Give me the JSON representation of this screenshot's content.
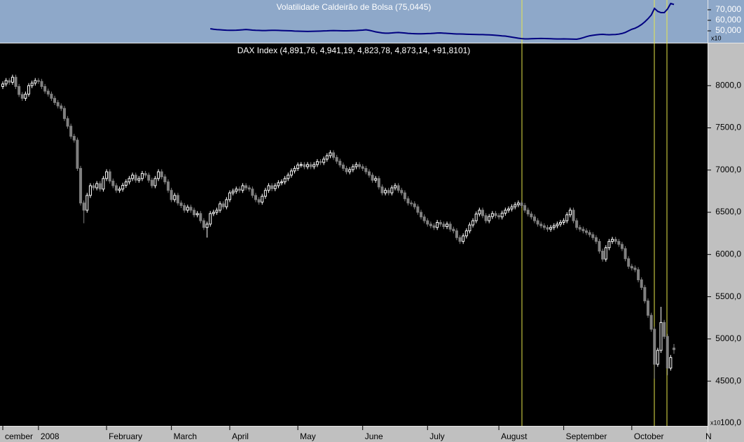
{
  "chart_data": {
    "type": "candlestick",
    "title": "DAX Index (4,891,76, 4,941,19, 4,823,78, 4,873,14, +91,8101)",
    "categories": [
      "cember",
      null,
      null,
      null,
      null,
      null,
      null,
      null,
      null,
      null,
      null,
      "2008",
      null,
      null,
      null,
      null,
      null,
      null,
      null,
      null,
      null,
      null,
      null,
      null,
      null,
      null,
      null,
      null,
      null,
      null,
      null,
      null,
      "February",
      null,
      null,
      null,
      null,
      null,
      null,
      null,
      null,
      null,
      null,
      null,
      null,
      null,
      null,
      null,
      null,
      null,
      null,
      null,
      "March",
      null,
      null,
      null,
      null,
      null,
      null,
      null,
      null,
      null,
      null,
      null,
      null,
      null,
      null,
      null,
      null,
      null,
      "April",
      null,
      null,
      null,
      null,
      null,
      null,
      null,
      null,
      null,
      null,
      null,
      null,
      null,
      null,
      null,
      null,
      null,
      null,
      null,
      null,
      "May",
      null,
      null,
      null,
      null,
      null,
      null,
      null,
      null,
      null,
      null,
      null,
      null,
      null,
      null,
      null,
      null,
      null,
      null,
      null,
      "June",
      null,
      null,
      null,
      null,
      null,
      null,
      null,
      null,
      null,
      null,
      null,
      null,
      null,
      null,
      null,
      null,
      null,
      null,
      null,
      "July",
      null,
      null,
      null,
      null,
      null,
      null,
      null,
      null,
      null,
      null,
      null,
      null,
      null,
      null,
      null,
      null,
      null,
      null,
      null,
      null,
      null,
      "August",
      null,
      null,
      null,
      null,
      null,
      null,
      null,
      null,
      null,
      null,
      null,
      null,
      null,
      null,
      null,
      null,
      null,
      null,
      null,
      "September",
      null,
      null,
      null,
      null,
      null,
      null,
      null,
      null,
      null,
      null,
      null,
      null,
      null,
      null,
      null,
      null,
      null,
      null,
      null,
      null,
      "October",
      null,
      null,
      null,
      null,
      null,
      null,
      null,
      null,
      null,
      null,
      null,
      null,
      null
    ],
    "open": [
      7990,
      8020,
      8060,
      8040,
      8100,
      7990,
      7895,
      7850,
      7900,
      8000,
      8030,
      8060,
      8050,
      7990,
      7935,
      7900,
      7850,
      7800,
      7760,
      7730,
      7610,
      7520,
      7400,
      7355,
      7020,
      6610,
      6525,
      6700,
      6815,
      6790,
      6840,
      6775,
      6900,
      6980,
      6870,
      6815,
      6760,
      6775,
      6820,
      6860,
      6900,
      6940,
      6880,
      6900,
      6960,
      6940,
      6880,
      6815,
      6900,
      6980,
      6920,
      6860,
      6760,
      6650,
      6700,
      6610,
      6580,
      6525,
      6560,
      6525,
      6470,
      6485,
      6400,
      6320,
      6360,
      6485,
      6500,
      6525,
      6600,
      6565,
      6650,
      6730,
      6750,
      6775,
      6760,
      6815,
      6790,
      6775,
      6700,
      6650,
      6620,
      6690,
      6760,
      6815,
      6780,
      6815,
      6850,
      6860,
      6900,
      6940,
      6990,
      7020,
      7060,
      7065,
      7040,
      7065,
      7040,
      7065,
      7100,
      7090,
      7130,
      7170,
      7205,
      7150,
      7105,
      7060,
      7020,
      6980,
      7005,
      7040,
      7065,
      7040,
      7020,
      6980,
      6940,
      6880,
      6900,
      6800,
      6730,
      6760,
      6730,
      6790,
      6815,
      6760,
      6730,
      6660,
      6610,
      6600,
      6565,
      6500,
      6445,
      6400,
      6360,
      6340,
      6320,
      6380,
      6360,
      6330,
      6360,
      6300,
      6280,
      6200,
      6155,
      6220,
      6280,
      6350,
      6400,
      6480,
      6525,
      6460,
      6400,
      6450,
      6485,
      6460,
      6445,
      6490,
      6525,
      6540,
      6565,
      6590,
      6610,
      6580,
      6525,
      6480,
      6445,
      6400,
      6360,
      6340,
      6320,
      6300,
      6320,
      6340,
      6360,
      6380,
      6400,
      6470,
      6525,
      6400,
      6320,
      6300,
      6280,
      6260,
      6235,
      6200,
      6155,
      6040,
      5945,
      6080,
      6155,
      6180,
      6155,
      6120,
      6070,
      5950,
      5860,
      5840,
      5820,
      5700,
      5610,
      5450,
      5280,
      5115,
      4700,
      4865,
      5195,
      5030,
      4655,
      4892
    ],
    "high": [
      8050,
      8090,
      8090,
      8130,
      8130,
      8020,
      7925,
      7930,
      8030,
      8060,
      8090,
      8090,
      8080,
      8020,
      7965,
      7930,
      7880,
      7830,
      7790,
      7760,
      7640,
      7550,
      7430,
      7385,
      7050,
      6640,
      6730,
      6845,
      6845,
      6870,
      6870,
      6930,
      7010,
      7010,
      6900,
      6845,
      6805,
      6850,
      6890,
      6930,
      6970,
      6970,
      6930,
      6990,
      6990,
      6970,
      6910,
      6930,
      7010,
      7010,
      6950,
      6890,
      6790,
      6730,
      6730,
      6640,
      6610,
      6590,
      6590,
      6555,
      6515,
      6515,
      6430,
      6390,
      6515,
      6530,
      6555,
      6630,
      6630,
      6680,
      6760,
      6780,
      6805,
      6805,
      6845,
      6845,
      6820,
      6805,
      6730,
      6680,
      6720,
      6790,
      6845,
      6845,
      6845,
      6880,
      6890,
      6930,
      6970,
      7020,
      7050,
      7090,
      7095,
      7095,
      7095,
      7095,
      7095,
      7130,
      7130,
      7160,
      7200,
      7235,
      7235,
      7180,
      7135,
      7090,
      7050,
      7035,
      7070,
      7095,
      7095,
      7070,
      7050,
      7010,
      6970,
      6930,
      6930,
      6830,
      6790,
      6790,
      6820,
      6845,
      6845,
      6790,
      6760,
      6690,
      6640,
      6630,
      6595,
      6530,
      6475,
      6430,
      6390,
      6370,
      6410,
      6410,
      6390,
      6390,
      6390,
      6330,
      6310,
      6230,
      6250,
      6310,
      6380,
      6430,
      6510,
      6555,
      6555,
      6490,
      6480,
      6515,
      6515,
      6490,
      6520,
      6555,
      6570,
      6595,
      6620,
      6640,
      6640,
      6610,
      6555,
      6510,
      6475,
      6430,
      6390,
      6370,
      6350,
      6350,
      6370,
      6390,
      6410,
      6430,
      6500,
      6555,
      6555,
      6430,
      6350,
      6330,
      6310,
      6290,
      6265,
      6230,
      6185,
      6070,
      6110,
      6185,
      6210,
      6210,
      6185,
      6150,
      6100,
      5980,
      5890,
      5870,
      5850,
      5730,
      5640,
      5480,
      5310,
      5145,
      4895,
      5380,
      5225,
      5060,
      4810,
      4941
    ],
    "low": [
      7960,
      7990,
      8010,
      8010,
      7960,
      7865,
      7820,
      7820,
      7870,
      7970,
      8000,
      8020,
      7960,
      7905,
      7870,
      7820,
      7770,
      7730,
      7700,
      7580,
      7490,
      7370,
      7325,
      6990,
      6580,
      6370,
      6495,
      6670,
      6760,
      6760,
      6745,
      6745,
      6870,
      6840,
      6785,
      6730,
      6730,
      6745,
      6790,
      6830,
      6870,
      6850,
      6850,
      6870,
      6910,
      6850,
      6785,
      6785,
      6870,
      6890,
      6830,
      6730,
      6620,
      6620,
      6580,
      6550,
      6495,
      6495,
      6495,
      6440,
      6440,
      6370,
      6290,
      6200,
      6330,
      6455,
      6470,
      6495,
      6535,
      6535,
      6620,
      6700,
      6720,
      6730,
      6730,
      6760,
      6745,
      6670,
      6620,
      6590,
      6590,
      6660,
      6730,
      6750,
      6750,
      6785,
      6820,
      6830,
      6870,
      6910,
      6960,
      6990,
      7030,
      7010,
      7010,
      7010,
      7010,
      7035,
      7060,
      7060,
      7100,
      7140,
      7120,
      7075,
      7030,
      6990,
      6950,
      6950,
      6975,
      7010,
      7010,
      6990,
      6950,
      6910,
      6850,
      6850,
      6770,
      6700,
      6700,
      6700,
      6700,
      6760,
      6730,
      6700,
      6630,
      6580,
      6570,
      6535,
      6470,
      6415,
      6370,
      6330,
      6310,
      6290,
      6290,
      6330,
      6300,
      6300,
      6270,
      6250,
      6170,
      6125,
      6125,
      6190,
      6250,
      6320,
      6370,
      6450,
      6430,
      6370,
      6370,
      6420,
      6430,
      6415,
      6415,
      6460,
      6495,
      6510,
      6535,
      6560,
      6550,
      6495,
      6450,
      6415,
      6370,
      6330,
      6310,
      6290,
      6270,
      6270,
      6290,
      6310,
      6330,
      6350,
      6370,
      6440,
      6370,
      6290,
      6270,
      6250,
      6230,
      6205,
      6170,
      6125,
      6010,
      5915,
      5915,
      6050,
      6125,
      6125,
      6090,
      6040,
      5920,
      5830,
      5810,
      5790,
      5670,
      5580,
      5420,
      5250,
      5085,
      4530,
      4670,
      4835,
      5000,
      4570,
      4625,
      4824
    ],
    "close": [
      8020,
      8060,
      8040,
      8100,
      7990,
      7895,
      7850,
      7900,
      8000,
      8030,
      8060,
      8050,
      7990,
      7935,
      7900,
      7850,
      7800,
      7760,
      7730,
      7610,
      7520,
      7400,
      7355,
      7020,
      6610,
      6525,
      6700,
      6815,
      6790,
      6840,
      6775,
      6900,
      6980,
      6870,
      6815,
      6760,
      6775,
      6820,
      6860,
      6900,
      6940,
      6880,
      6900,
      6960,
      6940,
      6880,
      6815,
      6900,
      6980,
      6920,
      6860,
      6760,
      6650,
      6700,
      6610,
      6580,
      6525,
      6560,
      6525,
      6470,
      6485,
      6400,
      6320,
      6360,
      6485,
      6500,
      6525,
      6600,
      6565,
      6650,
      6730,
      6750,
      6775,
      6760,
      6815,
      6790,
      6775,
      6700,
      6650,
      6620,
      6690,
      6760,
      6815,
      6780,
      6815,
      6850,
      6860,
      6900,
      6940,
      6990,
      7020,
      7060,
      7065,
      7040,
      7065,
      7040,
      7065,
      7100,
      7090,
      7130,
      7170,
      7205,
      7150,
      7105,
      7060,
      7020,
      6980,
      7005,
      7040,
      7065,
      7040,
      7020,
      6980,
      6940,
      6880,
      6900,
      6800,
      6730,
      6760,
      6730,
      6790,
      6815,
      6760,
      6730,
      6660,
      6610,
      6600,
      6565,
      6500,
      6445,
      6400,
      6360,
      6340,
      6320,
      6380,
      6360,
      6330,
      6360,
      6300,
      6280,
      6200,
      6155,
      6220,
      6280,
      6350,
      6400,
      6480,
      6525,
      6460,
      6400,
      6450,
      6485,
      6460,
      6445,
      6490,
      6525,
      6540,
      6565,
      6590,
      6610,
      6580,
      6525,
      6480,
      6445,
      6400,
      6360,
      6340,
      6320,
      6300,
      6320,
      6340,
      6360,
      6380,
      6400,
      6470,
      6525,
      6400,
      6320,
      6300,
      6280,
      6260,
      6235,
      6200,
      6155,
      6040,
      5945,
      6080,
      6155,
      6180,
      6155,
      6120,
      6070,
      5950,
      5860,
      5840,
      5820,
      5700,
      5610,
      5450,
      5280,
      5115,
      4700,
      4865,
      5195,
      5030,
      4655,
      4780,
      4873
    ],
    "up_color": "#ffffff",
    "down_color": "#808080",
    "ylim": [
      3970,
      8500
    ],
    "yticks": [
      {
        "value": 4500,
        "label": "4500,0"
      },
      {
        "value": 5000,
        "label": "5000,0"
      },
      {
        "value": 5500,
        "label": "5500,0"
      },
      {
        "value": 6000,
        "label": "6000,0"
      },
      {
        "value": 6500,
        "label": "6500,0"
      },
      {
        "value": 7000,
        "label": "7000,0"
      },
      {
        "value": 7500,
        "label": "7500,0"
      },
      {
        "value": 8000,
        "label": "8000,0"
      }
    ],
    "y_scale_note": "x10",
    "y_bottom_label": "100,0",
    "x_edge_label": "N",
    "indicator": {
      "type": "line",
      "title": "Volatilidade Caldeirão de Bolsa (75,0445)",
      "color": "#000080",
      "ylim": [
        38700,
        79300
      ],
      "yticks": [
        {
          "value": 50000,
          "label": "50,000"
        },
        {
          "value": 60000,
          "label": "60,000"
        },
        {
          "value": 70000,
          "label": "70,000"
        }
      ],
      "scale_note": "x10",
      "values": [
        null,
        null,
        null,
        null,
        null,
        null,
        null,
        null,
        null,
        null,
        null,
        null,
        null,
        null,
        null,
        null,
        null,
        null,
        null,
        null,
        null,
        null,
        null,
        null,
        null,
        null,
        null,
        null,
        null,
        null,
        null,
        null,
        null,
        null,
        null,
        null,
        null,
        null,
        null,
        null,
        null,
        null,
        null,
        null,
        null,
        null,
        null,
        null,
        null,
        null,
        null,
        null,
        null,
        null,
        null,
        null,
        null,
        null,
        null,
        null,
        null,
        null,
        null,
        null,
        52000,
        51500,
        51200,
        51000,
        50800,
        50600,
        50500,
        50500,
        50600,
        50800,
        51000,
        51300,
        51000,
        50700,
        50500,
        50400,
        50300,
        50300,
        50400,
        50500,
        50500,
        50400,
        50300,
        50200,
        50100,
        50000,
        49800,
        49700,
        49600,
        49500,
        49400,
        49500,
        49600,
        49700,
        49800,
        49900,
        50000,
        50200,
        50300,
        50200,
        50100,
        50000,
        50000,
        50100,
        50200,
        50300,
        50500,
        50700,
        51000,
        50500,
        49800,
        49000,
        48500,
        48000,
        47800,
        47800,
        48000,
        48300,
        48400,
        48200,
        47900,
        47600,
        47400,
        47300,
        47200,
        47200,
        47300,
        47400,
        47500,
        47700,
        47900,
        48000,
        47800,
        47600,
        47400,
        47200,
        47000,
        47000,
        46900,
        46800,
        46700,
        46600,
        46500,
        46400,
        46400,
        46300,
        46200,
        46000,
        45800,
        45500,
        45200,
        45000,
        44500,
        44000,
        43500,
        43000,
        42600,
        42400,
        42400,
        42500,
        42600,
        42700,
        42800,
        42700,
        42600,
        42500,
        42400,
        42300,
        42300,
        42400,
        42300,
        42200,
        42100,
        42000,
        42600,
        43500,
        44500,
        45300,
        45800,
        46200,
        46500,
        46700,
        46400,
        46300,
        46400,
        46500,
        46900,
        47500,
        48500,
        50000,
        51500,
        52500,
        54000,
        56000,
        58500,
        61500,
        65000,
        71300,
        68500,
        67300,
        67300,
        70600,
        76000,
        75045
      ]
    }
  }
}
